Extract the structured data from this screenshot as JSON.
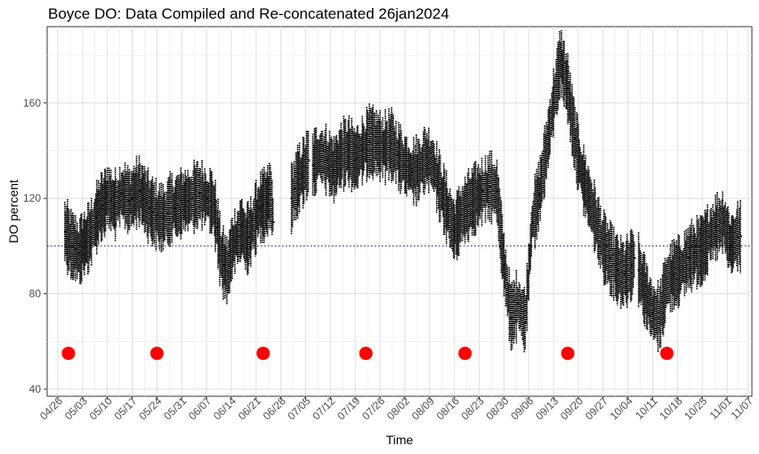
{
  "chart_data": {
    "type": "scatter",
    "title": "Boyce DO: Data Compiled and Re-concatenated 26jan2024",
    "xlabel": "Time",
    "ylabel": "DO percent",
    "x_tick_labels": [
      "04/26",
      "05/03",
      "05/10",
      "05/17",
      "05/24",
      "05/31",
      "06/07",
      "06/14",
      "06/21",
      "06/28",
      "07/05",
      "07/12",
      "07/19",
      "07/26",
      "08/02",
      "08/09",
      "08/16",
      "08/23",
      "08/30",
      "09/06",
      "09/13",
      "09/20",
      "09/27",
      "10/04",
      "10/11",
      "10/18",
      "10/25",
      "11/01",
      "11/07"
    ],
    "y_ticks": [
      40,
      80,
      120,
      160
    ],
    "ylim": [
      37,
      192
    ],
    "xlim": [
      "04/23",
      "11/08"
    ],
    "grid": true,
    "reference_line": {
      "y": 100,
      "style": "dotted",
      "color": "#00008b"
    },
    "series": [
      {
        "marker": "black-points",
        "color": "#000000",
        "segments": [
          {
            "start": "04/28",
            "end": "06/26",
            "points": [
              [
                "04/28",
                106
              ],
              [
                "04/29",
                103
              ],
              [
                "04/30",
                100
              ],
              [
                "05/01",
                99
              ],
              [
                "05/02",
                97
              ],
              [
                "05/03",
                100
              ],
              [
                "05/04",
                102
              ],
              [
                "05/05",
                104
              ],
              [
                "05/06",
                108
              ],
              [
                "05/07",
                112
              ],
              [
                "05/08",
                116
              ],
              [
                "05/09",
                117
              ],
              [
                "05/10",
                121
              ],
              [
                "05/11",
                119
              ],
              [
                "05/12",
                117
              ],
              [
                "05/13",
                119
              ],
              [
                "05/14",
                122
              ],
              [
                "05/15",
                121
              ],
              [
                "05/16",
                119
              ],
              [
                "05/17",
                120
              ],
              [
                "05/18",
                122
              ],
              [
                "05/19",
                123
              ],
              [
                "05/20",
                121
              ],
              [
                "05/21",
                118
              ],
              [
                "05/22",
                116
              ],
              [
                "05/23",
                114
              ],
              [
                "05/24",
                113
              ],
              [
                "05/25",
                112
              ],
              [
                "05/26",
                112
              ],
              [
                "05/27",
                114
              ],
              [
                "05/28",
                116
              ],
              [
                "05/29",
                116
              ],
              [
                "05/30",
                117
              ],
              [
                "05/31",
                118
              ],
              [
                "06/01",
                119
              ],
              [
                "06/02",
                119
              ],
              [
                "06/03",
                120
              ],
              [
                "06/04",
                121
              ],
              [
                "06/05",
                122
              ],
              [
                "06/06",
                121
              ],
              [
                "06/07",
                120
              ],
              [
                "06/08",
                119
              ],
              [
                "06/09",
                117
              ],
              [
                "06/10",
                108
              ],
              [
                "06/11",
                96
              ],
              [
                "06/12",
                92
              ],
              [
                "06/13",
                89
              ],
              [
                "06/14",
                98
              ],
              [
                "06/15",
                102
              ],
              [
                "06/16",
                104
              ],
              [
                "06/17",
                108
              ],
              [
                "06/18",
                102
              ],
              [
                "06/19",
                104
              ],
              [
                "06/20",
                108
              ],
              [
                "06/21",
                112
              ],
              [
                "06/22",
                116
              ],
              [
                "06/23",
                117
              ],
              [
                "06/24",
                118
              ],
              [
                "06/25",
                122
              ],
              [
                "06/26",
                110
              ]
            ]
          },
          {
            "start": "07/01",
            "end": "07/06",
            "points": [
              [
                "07/01",
                120
              ],
              [
                "07/02",
                124
              ],
              [
                "07/03",
                128
              ],
              [
                "07/04",
                130
              ],
              [
                "07/05",
                133
              ],
              [
                "07/06",
                136
              ]
            ]
          },
          {
            "start": "07/07",
            "end": "10/06",
            "points": [
              [
                "07/07",
                134
              ],
              [
                "07/09",
                138
              ],
              [
                "07/11",
                136
              ],
              [
                "07/13",
                132
              ],
              [
                "07/15",
                138
              ],
              [
                "07/17",
                140
              ],
              [
                "07/19",
                136
              ],
              [
                "07/21",
                140
              ],
              [
                "07/23",
                144
              ],
              [
                "07/25",
                143
              ],
              [
                "07/27",
                141
              ],
              [
                "07/29",
                143
              ],
              [
                "07/31",
                138
              ],
              [
                "08/02",
                134
              ],
              [
                "08/04",
                131
              ],
              [
                "08/06",
                132
              ],
              [
                "08/08",
                137
              ],
              [
                "08/10",
                134
              ],
              [
                "08/12",
                124
              ],
              [
                "08/14",
                115
              ],
              [
                "08/16",
                106
              ],
              [
                "08/18",
                113
              ],
              [
                "08/20",
                117
              ],
              [
                "08/22",
                120
              ],
              [
                "08/24",
                123
              ],
              [
                "08/26",
                125
              ],
              [
                "08/28",
                123
              ],
              [
                "08/30",
                92
              ],
              [
                "09/01",
                70
              ],
              [
                "09/03",
                76
              ],
              [
                "09/05",
                68
              ],
              [
                "09/07",
                110
              ],
              [
                "09/09",
                122
              ],
              [
                "09/11",
                140
              ],
              [
                "09/13",
                160
              ],
              [
                "09/15",
                178
              ],
              [
                "09/17",
                166
              ],
              [
                "09/19",
                145
              ],
              [
                "09/21",
                130
              ],
              [
                "09/23",
                120
              ],
              [
                "09/25",
                110
              ],
              [
                "09/27",
                100
              ],
              [
                "09/29",
                95
              ],
              [
                "10/01",
                90
              ],
              [
                "10/03",
                88
              ],
              [
                "10/05",
                92
              ],
              [
                "10/06",
                95
              ]
            ]
          },
          {
            "start": "10/07",
            "end": "11/05",
            "points": [
              [
                "10/07",
                90
              ],
              [
                "10/09",
                80
              ],
              [
                "10/11",
                72
              ],
              [
                "10/13",
                70
              ],
              [
                "10/15",
                85
              ],
              [
                "10/17",
                88
              ],
              [
                "10/19",
                90
              ],
              [
                "10/21",
                95
              ],
              [
                "10/23",
                97
              ],
              [
                "10/25",
                98
              ],
              [
                "10/27",
                104
              ],
              [
                "10/29",
                108
              ],
              [
                "10/31",
                110
              ],
              [
                "11/02",
                100
              ],
              [
                "11/04",
                104
              ],
              [
                "11/05",
                104
              ]
            ]
          }
        ]
      },
      {
        "marker": "red-circles",
        "color": "#ff0000",
        "points": [
          [
            "04/29",
            55
          ],
          [
            "05/24",
            55
          ],
          [
            "06/23",
            55
          ],
          [
            "07/22",
            55
          ],
          [
            "08/19",
            55
          ],
          [
            "09/17",
            55
          ],
          [
            "10/15",
            55
          ]
        ]
      }
    ]
  }
}
